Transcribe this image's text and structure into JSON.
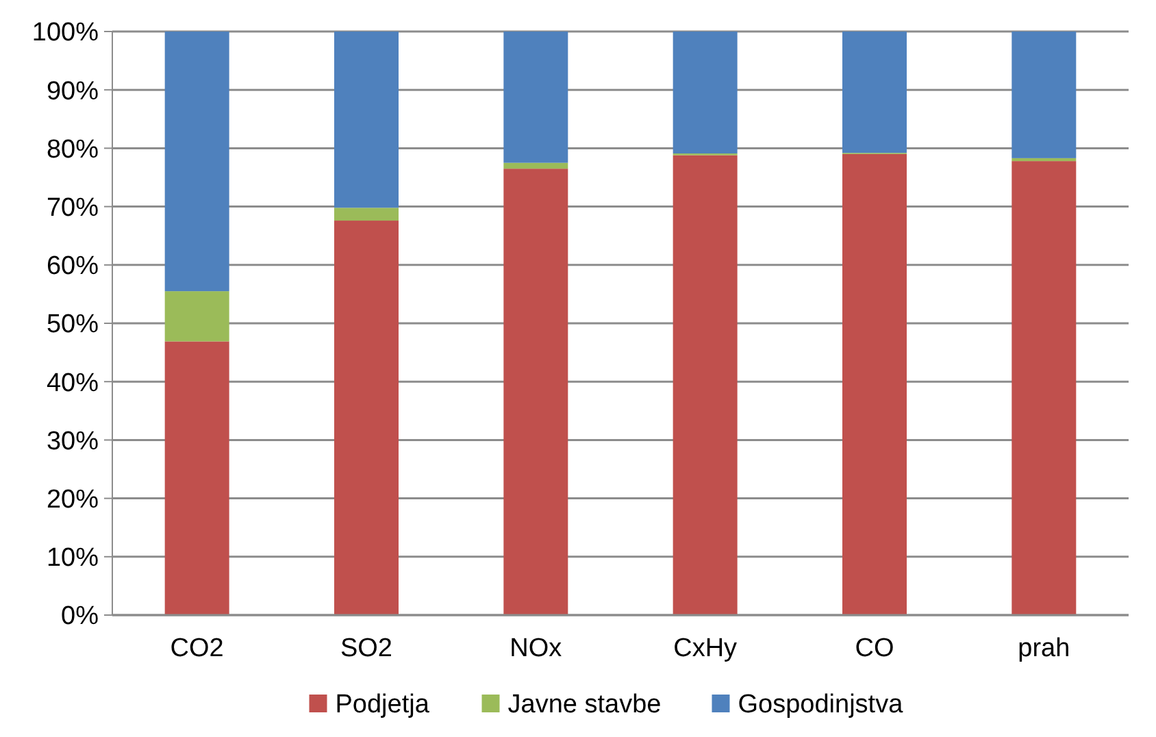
{
  "chart_data": {
    "type": "bar",
    "stacked": true,
    "categories": [
      "CO2",
      "SO2",
      "NOx",
      "CxHy",
      "CO",
      "prah"
    ],
    "series": [
      {
        "name": "Podjetja",
        "color": "#c0504d",
        "values": [
          46.9,
          67.6,
          76.5,
          78.8,
          79.0,
          77.8
        ]
      },
      {
        "name": "Javne stavbe",
        "color": "#9bbb59",
        "values": [
          8.6,
          2.2,
          1.0,
          0.3,
          0.2,
          0.5
        ]
      },
      {
        "name": "Gospodinjstva",
        "color": "#4f81bd",
        "values": [
          44.5,
          30.2,
          22.5,
          20.9,
          20.8,
          21.7
        ]
      }
    ],
    "ylim": [
      0,
      100
    ],
    "yticks": [
      {
        "value": 0,
        "label": "0%"
      },
      {
        "value": 10,
        "label": "10%"
      },
      {
        "value": 20,
        "label": "20%"
      },
      {
        "value": 30,
        "label": "30%"
      },
      {
        "value": 40,
        "label": "40%"
      },
      {
        "value": 50,
        "label": "50%"
      },
      {
        "value": 60,
        "label": "60%"
      },
      {
        "value": 70,
        "label": "70%"
      },
      {
        "value": 80,
        "label": "80%"
      },
      {
        "value": 90,
        "label": "90%"
      },
      {
        "value": 100,
        "label": "100%"
      }
    ],
    "grid": "y",
    "legend": "bottom"
  }
}
